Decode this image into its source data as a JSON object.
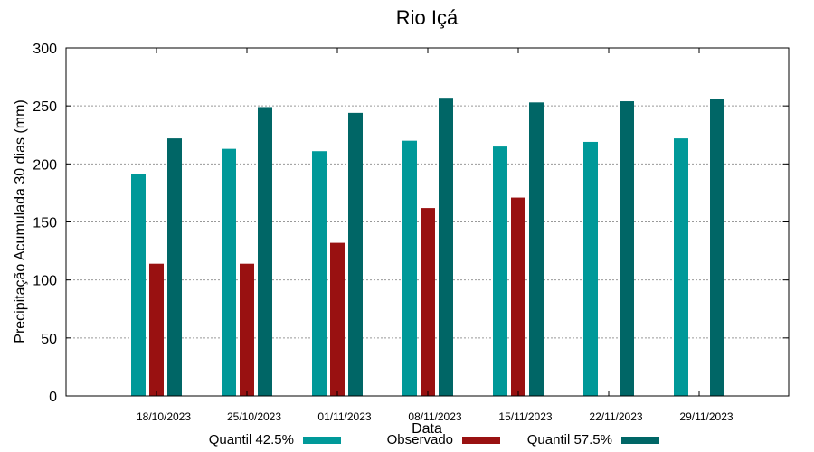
{
  "chart_data": {
    "type": "bar",
    "title": "Rio Içá",
    "xlabel": "Data",
    "ylabel": "Precipitação Acumulada 30 dias (mm)",
    "ylim": [
      0,
      300
    ],
    "yticks": [
      0,
      50,
      100,
      150,
      200,
      250,
      300
    ],
    "grid": true,
    "legend_position": "bottom",
    "categories": [
      "18/10/2023",
      "25/10/2023",
      "01/11/2023",
      "08/11/2023",
      "15/11/2023",
      "22/11/2023",
      "29/11/2023"
    ],
    "series": [
      {
        "name": "Quantil 42.5%",
        "color": "#009999",
        "values": [
          191,
          213,
          211,
          220,
          215,
          219,
          222
        ]
      },
      {
        "name": "Observado",
        "color": "#991111",
        "values": [
          114,
          114,
          132,
          162,
          171,
          null,
          null
        ]
      },
      {
        "name": "Quantil 57.5%",
        "color": "#006666",
        "values": [
          222,
          249,
          244,
          257,
          253,
          254,
          256
        ]
      }
    ]
  }
}
